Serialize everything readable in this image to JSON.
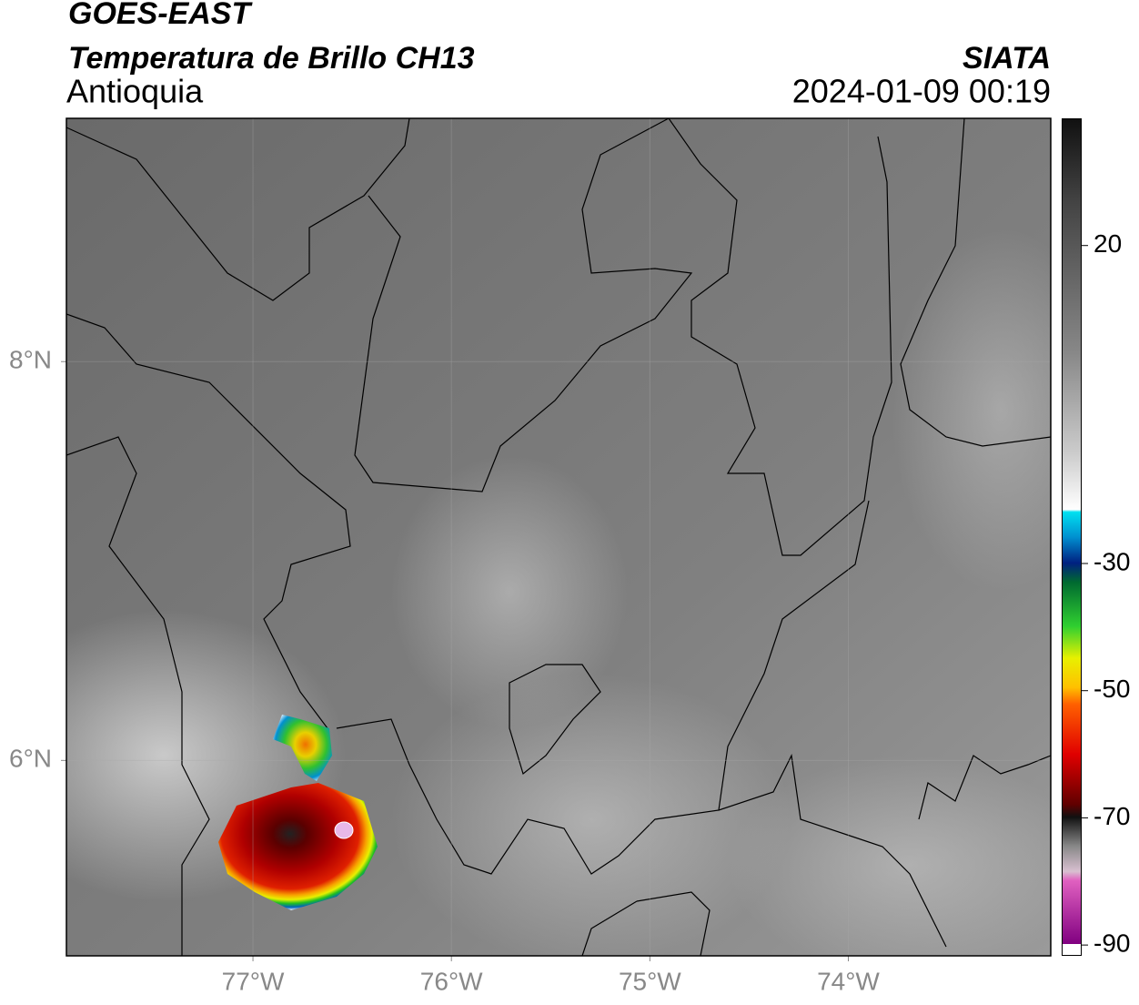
{
  "header": {
    "title": "GOES-EAST",
    "subtitle": "Temperatura de Brillo CH13",
    "region": "Antioquia",
    "source": "SIATA",
    "datetime": "2024-01-09 00:19"
  },
  "map": {
    "xlim": [
      -77.94,
      -72.98
    ],
    "ylim": [
      5.02,
      9.22
    ],
    "xticks": [
      {
        "value": -77,
        "label": "77°W"
      },
      {
        "value": -76,
        "label": "76°W"
      },
      {
        "value": -75,
        "label": "75°W"
      },
      {
        "value": -74,
        "label": "74°W"
      }
    ],
    "yticks": [
      {
        "value": 8,
        "label": "8°N"
      },
      {
        "value": 6,
        "label": "6°N"
      }
    ],
    "grid": true
  },
  "colorbar": {
    "lim": [
      -91.7,
      40
    ],
    "ticks": [
      20,
      -30,
      -50,
      -70,
      -90
    ]
  }
}
